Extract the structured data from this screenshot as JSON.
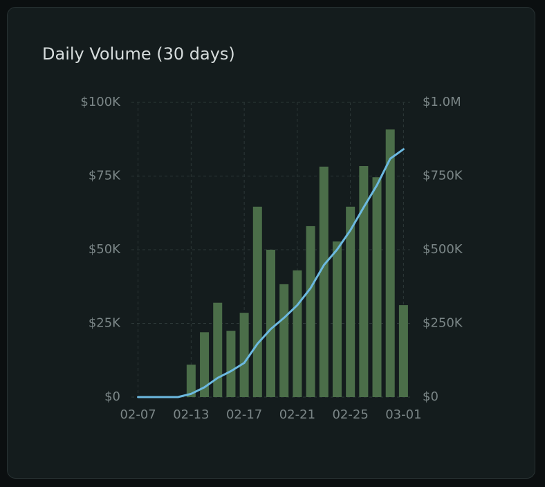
{
  "chart_data": {
    "type": "bar_line",
    "title": "Daily Volume (30 days)",
    "categories": [
      "02-07",
      null,
      null,
      null,
      "02-13",
      null,
      null,
      null,
      "02-17",
      null,
      null,
      null,
      "02-21",
      null,
      null,
      null,
      "02-25",
      null,
      null,
      null,
      "03-01"
    ],
    "series": [
      {
        "type": "bar",
        "color": "#4b6e49",
        "values": [
          0,
          0,
          0,
          0,
          11000,
          22000,
          32000,
          22500,
          28600,
          64600,
          50000,
          38300,
          43000,
          58000,
          78200,
          52800,
          64600,
          78400,
          74600,
          90800,
          31200
        ]
      },
      {
        "type": "line",
        "axis": "y2",
        "color": "#6cb9e0",
        "values": [
          0,
          0,
          0,
          0,
          11000,
          33000,
          65000,
          88000,
          116000,
          181000,
          231000,
          269000,
          312000,
          370000,
          448000,
          501000,
          566000,
          644000,
          719000,
          809000,
          841000
        ]
      }
    ],
    "ylim": [
      0,
      100000
    ],
    "yticks": [
      {
        "value": 0,
        "label": "$0"
      },
      {
        "value": 25000,
        "label": "$25K"
      },
      {
        "value": 50000,
        "label": "$50K"
      },
      {
        "value": 75000,
        "label": "$75K"
      },
      {
        "value": 100000,
        "label": "$100K"
      }
    ],
    "y2lim": [
      0,
      1000000
    ],
    "y2ticks": [
      {
        "value": 0,
        "label": "$0"
      },
      {
        "value": 250000,
        "label": "$250K"
      },
      {
        "value": 500000,
        "label": "$500K"
      },
      {
        "value": 750000,
        "label": "$750K"
      },
      {
        "value": 1000000,
        "label": "$1.0M"
      }
    ],
    "grid": true
  }
}
